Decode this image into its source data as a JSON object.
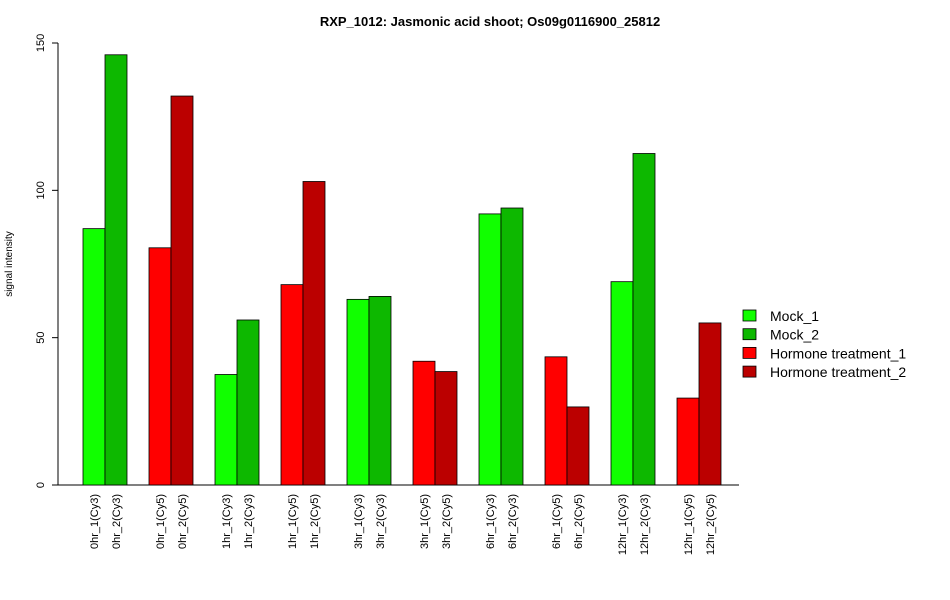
{
  "chart_data": {
    "type": "bar",
    "title": "RXP_1012: Jasmonic acid shoot; Os09g0116900_25812",
    "xlabel": "",
    "ylabel": "signal intensity",
    "ylim": [
      0,
      150
    ],
    "yticks": [
      0,
      50,
      100,
      150
    ],
    "grid": false,
    "legend_position": "right",
    "legend": [
      {
        "name": "Mock_1",
        "color": "#11ff00"
      },
      {
        "name": "Mock_2",
        "color": "#0db800"
      },
      {
        "name": "Hormone treatment_1",
        "color": "#ff0000"
      },
      {
        "name": "Hormone treatment_2",
        "color": "#bb0000"
      }
    ],
    "groups": [
      {
        "bars": [
          {
            "label": "0hr_1(Cy3)",
            "value": 87,
            "color": "#11ff00"
          },
          {
            "label": "0hr_2(Cy3)",
            "value": 146,
            "color": "#0db800"
          }
        ]
      },
      {
        "bars": [
          {
            "label": "0hr_1(Cy5)",
            "value": 80.5,
            "color": "#ff0000"
          },
          {
            "label": "0hr_2(Cy5)",
            "value": 132,
            "color": "#bb0000"
          }
        ]
      },
      {
        "bars": [
          {
            "label": "1hr_1(Cy3)",
            "value": 37.5,
            "color": "#11ff00"
          },
          {
            "label": "1hr_2(Cy3)",
            "value": 56,
            "color": "#0db800"
          }
        ]
      },
      {
        "bars": [
          {
            "label": "1hr_1(Cy5)",
            "value": 68,
            "color": "#ff0000"
          },
          {
            "label": "1hr_2(Cy5)",
            "value": 103,
            "color": "#bb0000"
          }
        ]
      },
      {
        "bars": [
          {
            "label": "3hr_1(Cy3)",
            "value": 63,
            "color": "#11ff00"
          },
          {
            "label": "3hr_2(Cy3)",
            "value": 64,
            "color": "#0db800"
          }
        ]
      },
      {
        "bars": [
          {
            "label": "3hr_1(Cy5)",
            "value": 42,
            "color": "#ff0000"
          },
          {
            "label": "3hr_2(Cy5)",
            "value": 38.5,
            "color": "#bb0000"
          }
        ]
      },
      {
        "bars": [
          {
            "label": "6hr_1(Cy3)",
            "value": 92,
            "color": "#11ff00"
          },
          {
            "label": "6hr_2(Cy3)",
            "value": 94,
            "color": "#0db800"
          }
        ]
      },
      {
        "bars": [
          {
            "label": "6hr_1(Cy5)",
            "value": 43.5,
            "color": "#ff0000"
          },
          {
            "label": "6hr_2(Cy5)",
            "value": 26.5,
            "color": "#bb0000"
          }
        ]
      },
      {
        "bars": [
          {
            "label": "12hr_1(Cy3)",
            "value": 69,
            "color": "#11ff00"
          },
          {
            "label": "12hr_2(Cy3)",
            "value": 112.5,
            "color": "#0db800"
          }
        ]
      },
      {
        "bars": [
          {
            "label": "12hr_1(Cy5)",
            "value": 29.5,
            "color": "#ff0000"
          },
          {
            "label": "12hr_2(Cy5)",
            "value": 55,
            "color": "#bb0000"
          }
        ]
      }
    ]
  }
}
